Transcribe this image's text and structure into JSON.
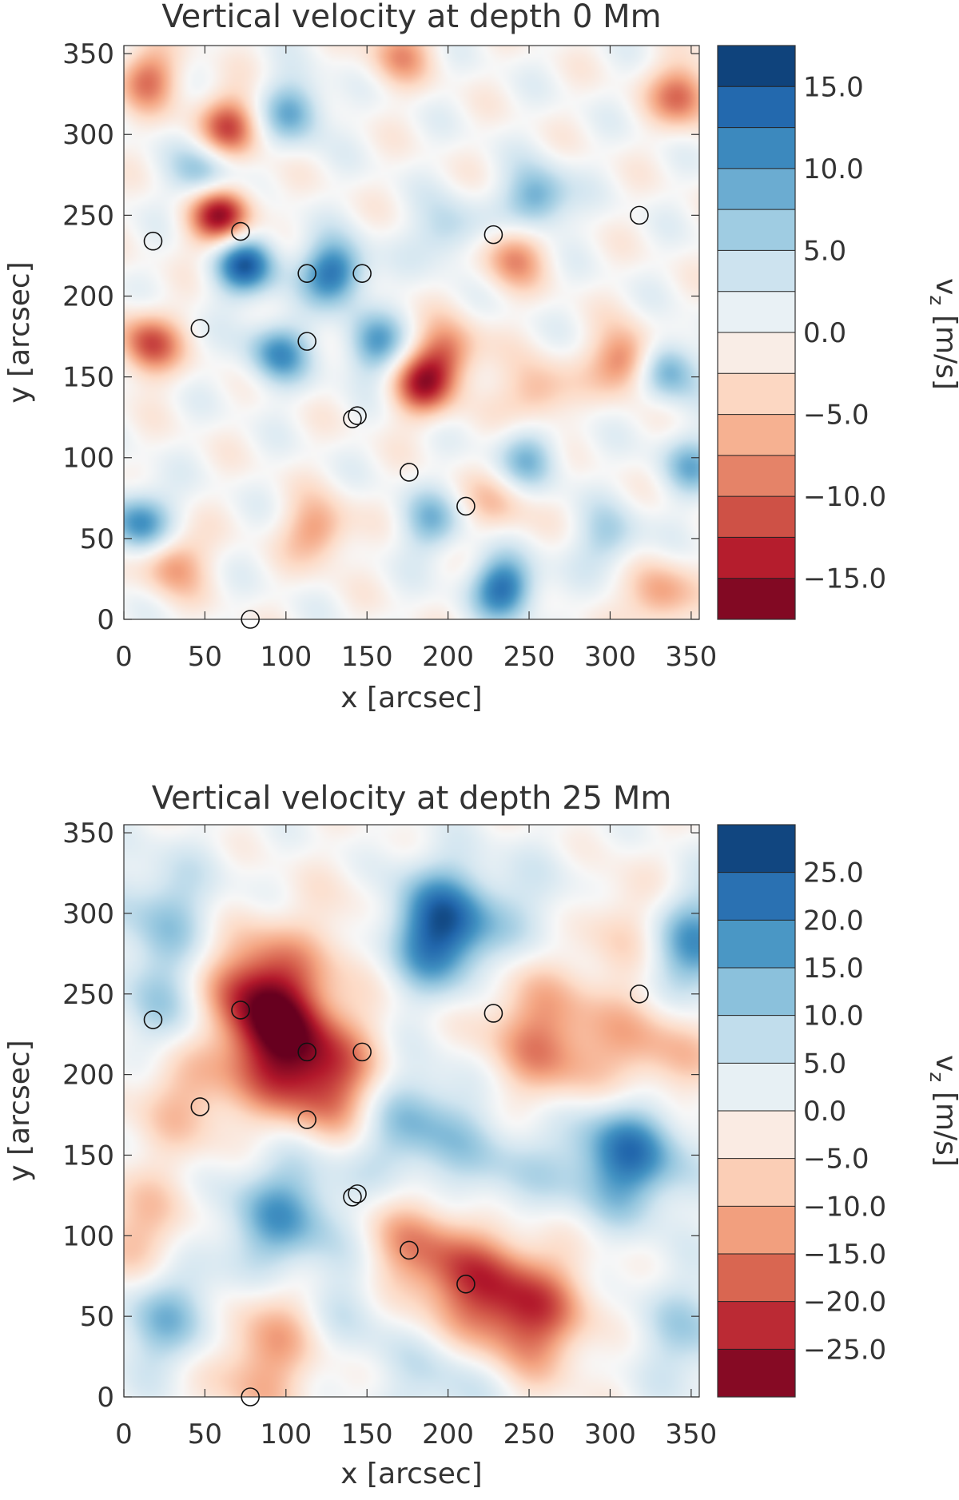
{
  "chart_data": [
    {
      "type": "heatmap",
      "title": "Vertical velocity at depth 0 Mm",
      "xlabel": "x [arcsec]",
      "ylabel": "y [arcsec]",
      "colorbar_label": "v_z [m/s]",
      "colorbar_label_parts": {
        "main": "v",
        "sub": "z",
        "unit": "[m/s]"
      },
      "xlim": [
        0,
        355
      ],
      "ylim": [
        0,
        355
      ],
      "x_ticks": [
        "0",
        "50",
        "100",
        "150",
        "200",
        "250",
        "300",
        "350"
      ],
      "y_ticks": [
        "0",
        "50",
        "100",
        "150",
        "200",
        "250",
        "300",
        "350"
      ],
      "colorbar_range": [
        -17.5,
        17.5
      ],
      "colorbar_levels": 14,
      "colorbar_ticks": [
        "15.0",
        "10.0",
        "5.0",
        "0.0",
        "−5.0",
        "−10.0",
        "−15.0"
      ],
      "colormap": [
        "#67001f",
        "#b2182b",
        "#d6604d",
        "#f4a582",
        "#fddbc7",
        "#f7f7f7",
        "#d1e5f0",
        "#92c5de",
        "#4393c3",
        "#2166ac",
        "#053061"
      ],
      "field_features": [
        {
          "x": 75,
          "y": 220,
          "v": 14
        },
        {
          "x": 130,
          "y": 215,
          "v": 13
        },
        {
          "x": 95,
          "y": 165,
          "v": 10
        },
        {
          "x": 155,
          "y": 170,
          "v": 9
        },
        {
          "x": 10,
          "y": 60,
          "v": 11
        },
        {
          "x": 235,
          "y": 20,
          "v": 13
        },
        {
          "x": 105,
          "y": 315,
          "v": 9
        },
        {
          "x": 255,
          "y": 260,
          "v": 10
        },
        {
          "x": 335,
          "y": 155,
          "v": 10
        },
        {
          "x": 50,
          "y": 275,
          "v": 8
        },
        {
          "x": 190,
          "y": 60,
          "v": 7
        },
        {
          "x": 250,
          "y": 100,
          "v": 7
        },
        {
          "x": 350,
          "y": 95,
          "v": 7
        },
        {
          "x": 300,
          "y": 50,
          "v": 6
        },
        {
          "x": 200,
          "y": 240,
          "v": 6
        },
        {
          "x": 60,
          "y": 250,
          "v": -16
        },
        {
          "x": 65,
          "y": 305,
          "v": -11
        },
        {
          "x": 185,
          "y": 145,
          "v": -12
        },
        {
          "x": 15,
          "y": 170,
          "v": -11
        },
        {
          "x": 310,
          "y": 160,
          "v": -11
        },
        {
          "x": 345,
          "y": 325,
          "v": -10
        },
        {
          "x": 15,
          "y": 335,
          "v": -9
        },
        {
          "x": 120,
          "y": 55,
          "v": -8
        },
        {
          "x": 30,
          "y": 35,
          "v": -8
        },
        {
          "x": 240,
          "y": 225,
          "v": -8
        },
        {
          "x": 330,
          "y": 15,
          "v": -8
        },
        {
          "x": 255,
          "y": 140,
          "v": -7
        },
        {
          "x": 200,
          "y": 165,
          "v": -9
        },
        {
          "x": 170,
          "y": 350,
          "v": -7
        },
        {
          "x": 230,
          "y": 70,
          "v": -5
        }
      ],
      "markers": [
        {
          "x": 18,
          "y": 234
        },
        {
          "x": 72,
          "y": 240
        },
        {
          "x": 47,
          "y": 180
        },
        {
          "x": 113,
          "y": 214
        },
        {
          "x": 147,
          "y": 214
        },
        {
          "x": 113,
          "y": 172
        },
        {
          "x": 141,
          "y": 124
        },
        {
          "x": 144,
          "y": 126
        },
        {
          "x": 176,
          "y": 91
        },
        {
          "x": 211,
          "y": 70
        },
        {
          "x": 228,
          "y": 238
        },
        {
          "x": 318,
          "y": 250
        },
        {
          "x": 78,
          "y": 0
        }
      ]
    },
    {
      "type": "heatmap",
      "title": "Vertical velocity at depth 25 Mm",
      "xlabel": "x [arcsec]",
      "ylabel": "y [arcsec]",
      "colorbar_label": "v_z [m/s]",
      "colorbar_label_parts": {
        "main": "v",
        "sub": "z",
        "unit": "[m/s]"
      },
      "xlim": [
        0,
        355
      ],
      "ylim": [
        0,
        355
      ],
      "x_ticks": [
        "0",
        "50",
        "100",
        "150",
        "200",
        "250",
        "300",
        "350"
      ],
      "y_ticks": [
        "0",
        "50",
        "100",
        "150",
        "200",
        "250",
        "300",
        "350"
      ],
      "colorbar_range": [
        -30,
        30
      ],
      "colorbar_levels": 12,
      "colorbar_ticks": [
        "25.0",
        "20.0",
        "15.0",
        "10.0",
        "5.0",
        "0.0",
        "−5.0",
        "−10.0",
        "−15.0",
        "−20.0",
        "−25.0"
      ],
      "colormap": [
        "#67001f",
        "#b2182b",
        "#d6604d",
        "#f4a582",
        "#fddbc7",
        "#f7f7f7",
        "#d1e5f0",
        "#92c5de",
        "#4393c3",
        "#2166ac",
        "#053061"
      ],
      "field_features": [
        {
          "x": 195,
          "y": 290,
          "v": 28
        },
        {
          "x": 310,
          "y": 150,
          "v": 22
        },
        {
          "x": 350,
          "y": 280,
          "v": 20
        },
        {
          "x": 175,
          "y": 170,
          "v": 15
        },
        {
          "x": 95,
          "y": 105,
          "v": 16
        },
        {
          "x": 30,
          "y": 50,
          "v": 14
        },
        {
          "x": 35,
          "y": 240,
          "v": 12
        },
        {
          "x": 25,
          "y": 300,
          "v": 10
        },
        {
          "x": 140,
          "y": 60,
          "v": 9
        },
        {
          "x": 230,
          "y": 140,
          "v": 8
        },
        {
          "x": 270,
          "y": 300,
          "v": 6
        },
        {
          "x": 350,
          "y": 40,
          "v": 9
        },
        {
          "x": 200,
          "y": 10,
          "v": 8
        },
        {
          "x": 115,
          "y": 150,
          "v": 6
        },
        {
          "x": 80,
          "y": 250,
          "v": -26
        },
        {
          "x": 105,
          "y": 215,
          "v": -20
        },
        {
          "x": 130,
          "y": 185,
          "v": -16
        },
        {
          "x": 40,
          "y": 190,
          "v": -10
        },
        {
          "x": 250,
          "y": 50,
          "v": -18
        },
        {
          "x": 180,
          "y": 90,
          "v": -14
        },
        {
          "x": 220,
          "y": 70,
          "v": -13
        },
        {
          "x": 265,
          "y": 215,
          "v": -13
        },
        {
          "x": 310,
          "y": 290,
          "v": -12
        },
        {
          "x": 330,
          "y": 215,
          "v": -11
        },
        {
          "x": 10,
          "y": 100,
          "v": -10
        },
        {
          "x": 80,
          "y": 20,
          "v": -11
        },
        {
          "x": 100,
          "y": 60,
          "v": -8
        },
        {
          "x": 150,
          "y": 290,
          "v": -6
        },
        {
          "x": 240,
          "y": 250,
          "v": -6
        }
      ],
      "markers": [
        {
          "x": 18,
          "y": 234
        },
        {
          "x": 72,
          "y": 240
        },
        {
          "x": 47,
          "y": 180
        },
        {
          "x": 113,
          "y": 214
        },
        {
          "x": 147,
          "y": 214
        },
        {
          "x": 113,
          "y": 172
        },
        {
          "x": 141,
          "y": 124
        },
        {
          "x": 144,
          "y": 126
        },
        {
          "x": 176,
          "y": 91
        },
        {
          "x": 211,
          "y": 70
        },
        {
          "x": 228,
          "y": 238
        },
        {
          "x": 318,
          "y": 250
        },
        {
          "x": 78,
          "y": 0
        }
      ]
    }
  ]
}
